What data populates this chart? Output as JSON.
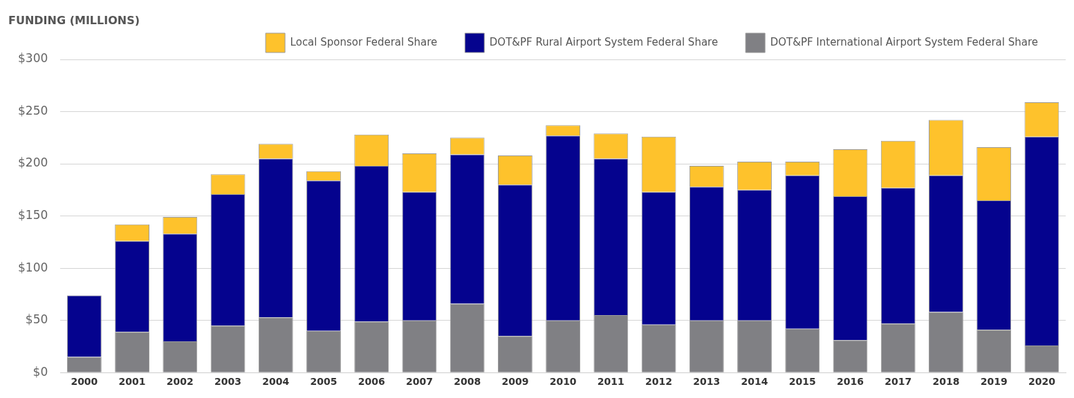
{
  "chart_data": {
    "type": "bar",
    "title": "FUNDING (MILLIONS)",
    "stacked": true,
    "legend": "top right",
    "grid": "y",
    "categories": [
      "2000",
      "2001",
      "2002",
      "2003",
      "2004",
      "2005",
      "2006",
      "2007",
      "2008",
      "2009",
      "2010",
      "2011",
      "2012",
      "2013",
      "2014",
      "2015",
      "2016",
      "2017",
      "2018",
      "2019",
      "2020"
    ],
    "series": [
      {
        "name": "DOT&PF International Airport System Federal Share",
        "color": "#808084",
        "values": [
          15,
          39,
          30,
          45,
          53,
          40,
          49,
          50,
          66,
          35,
          50,
          55,
          46,
          50,
          50,
          42,
          31,
          47,
          58,
          41,
          26
        ]
      },
      {
        "name": "DOT&PF Rural Airport System Federal Share",
        "color": "#05038e",
        "values": [
          59,
          87,
          103,
          126,
          152,
          144,
          149,
          123,
          143,
          145,
          177,
          150,
          127,
          128,
          125,
          147,
          138,
          130,
          131,
          124,
          200
        ]
      },
      {
        "name": "Local Sponsor Federal Share",
        "color": "#fec22c",
        "values": [
          0,
          16,
          16,
          19,
          14,
          9,
          30,
          37,
          16,
          28,
          10,
          24,
          53,
          20,
          27,
          13,
          45,
          45,
          53,
          51,
          33
        ]
      }
    ],
    "ylim": [
      0,
      300
    ],
    "yticks": [
      {
        "value": 0,
        "label": "$0"
      },
      {
        "value": 50,
        "label": "$50"
      },
      {
        "value": 100,
        "label": "$100"
      },
      {
        "value": 150,
        "label": "$150"
      },
      {
        "value": 200,
        "label": "$200"
      },
      {
        "value": 250,
        "label": "$250"
      },
      {
        "value": 300,
        "label": "$300"
      }
    ]
  }
}
